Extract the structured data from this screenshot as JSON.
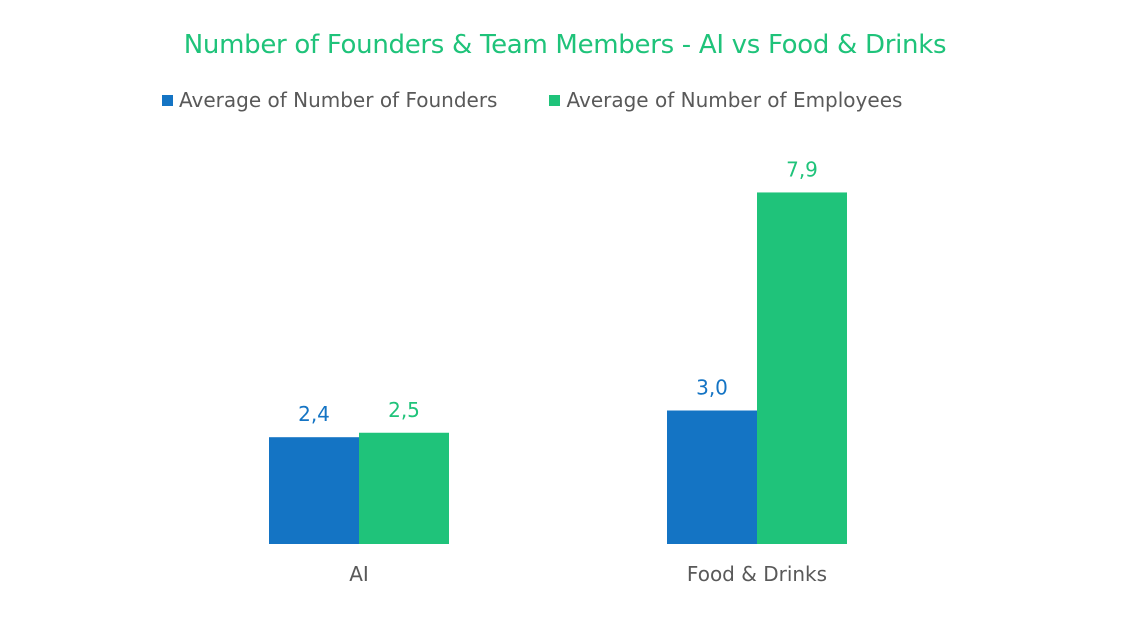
{
  "chart_data": {
    "type": "bar",
    "title": "Number of Founders & Team Members - AI vs Food & Drinks",
    "categories": [
      "AI",
      "Food & Drinks"
    ],
    "series": [
      {
        "name": "Average of Number of Founders",
        "values": [
          2.4,
          3.0
        ],
        "labels": [
          "2,4",
          "3,0"
        ],
        "color": "#1474c4"
      },
      {
        "name": "Average of Number of Employees",
        "values": [
          2.5,
          7.9
        ],
        "labels": [
          "2,5",
          "7,9"
        ],
        "color": "#1fc37a"
      }
    ],
    "ylim": [
      0,
      9
    ],
    "grid": false,
    "legend": "top",
    "colors": {
      "title": "#1fc37a",
      "axis_text": "#595959"
    }
  }
}
